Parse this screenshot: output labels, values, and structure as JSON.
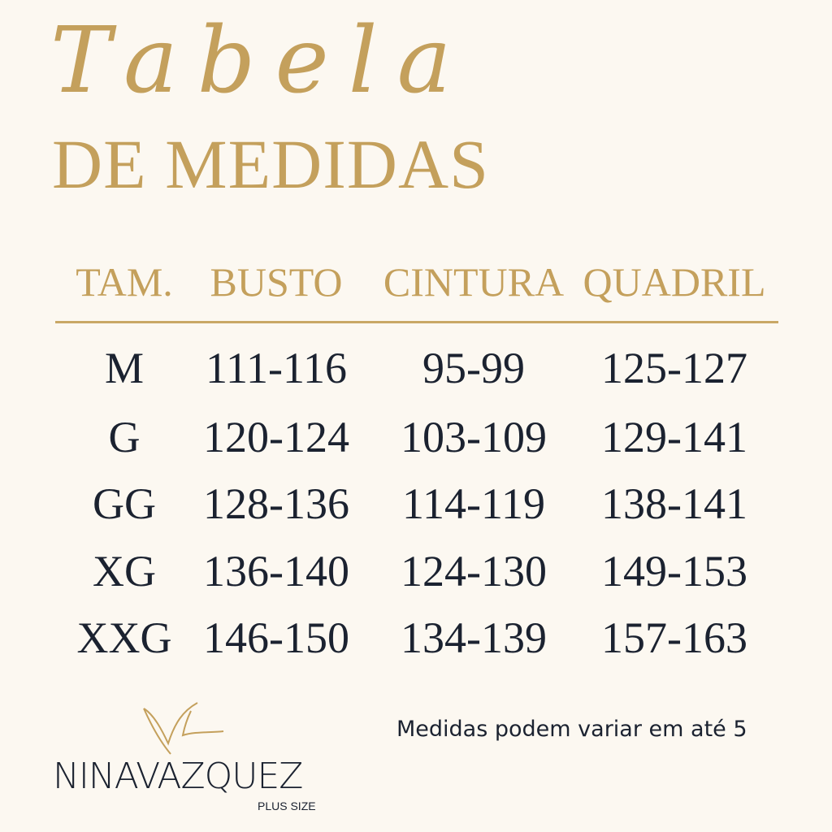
{
  "title": {
    "script": "Tabela",
    "subtitle": "DE MEDIDAS"
  },
  "table": {
    "headers": [
      "TAM.",
      "BUSTO",
      "CINTURA",
      "QUADRIL"
    ],
    "rows": [
      [
        "M",
        "111-116",
        "95-99",
        "125-127"
      ],
      [
        "G",
        "120-124",
        "103-109",
        "129-141"
      ],
      [
        "GG",
        "128-136",
        "114-119",
        "138-141"
      ],
      [
        "XG",
        "136-140",
        "124-130",
        "149-153"
      ],
      [
        "XXG",
        "146-150",
        "134-139",
        "157-163"
      ]
    ]
  },
  "note": "Medidas podem variar em até 5",
  "logo": {
    "name": "NINAVAZQUEZ",
    "tagline": "PLUS SIZE"
  },
  "colors": {
    "background": "#fcf8f1",
    "gold": "#c4a05c",
    "text": "#1b2230"
  }
}
